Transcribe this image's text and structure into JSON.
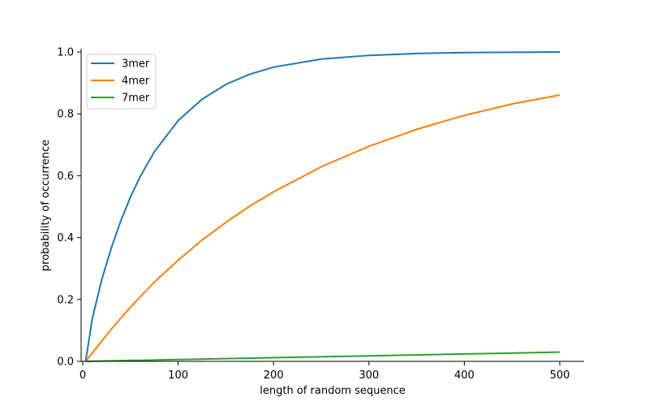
{
  "chart_data": {
    "type": "line",
    "title": "",
    "xlabel": "length of random sequence",
    "ylabel": "probability of occurrence",
    "xlim": [
      0,
      525
    ],
    "ylim": [
      0,
      1.0
    ],
    "xticks": [
      0,
      100,
      200,
      300,
      400,
      500
    ],
    "yticks": [
      0.0,
      0.2,
      0.4,
      0.6,
      0.8,
      1.0
    ],
    "xtick_labels": [
      "0",
      "100",
      "200",
      "300",
      "400",
      "500"
    ],
    "ytick_labels": [
      "0.0",
      "0.2",
      "0.4",
      "0.6",
      "0.8",
      "1.0"
    ],
    "grid": false,
    "legend_position": "top-left",
    "x": [
      3,
      10,
      20,
      30,
      40,
      50,
      60,
      75,
      100,
      125,
      150,
      175,
      200,
      250,
      300,
      350,
      400,
      450,
      500
    ],
    "series": [
      {
        "name": "3mer",
        "color": "#1f77b4",
        "values": [
          0.0,
          0.138,
          0.265,
          0.367,
          0.455,
          0.531,
          0.596,
          0.677,
          0.778,
          0.847,
          0.895,
          0.928,
          0.951,
          0.977,
          0.989,
          0.995,
          0.998,
          0.999,
          1.0
        ]
      },
      {
        "name": "4mer",
        "color": "#ff7f0e",
        "values": [
          0.0,
          0.027,
          0.066,
          0.104,
          0.14,
          0.175,
          0.208,
          0.256,
          0.327,
          0.392,
          0.449,
          0.502,
          0.548,
          0.629,
          0.695,
          0.75,
          0.795,
          0.832,
          0.861
        ]
      },
      {
        "name": "7mer",
        "color": "#2ca02c",
        "values": [
          0.0,
          0.0004,
          0.0011,
          0.0016,
          0.0022,
          0.0028,
          0.0034,
          0.0043,
          0.0058,
          0.0073,
          0.0088,
          0.0103,
          0.0118,
          0.0148,
          0.0178,
          0.0208,
          0.0238,
          0.0267,
          0.0297
        ]
      }
    ]
  }
}
